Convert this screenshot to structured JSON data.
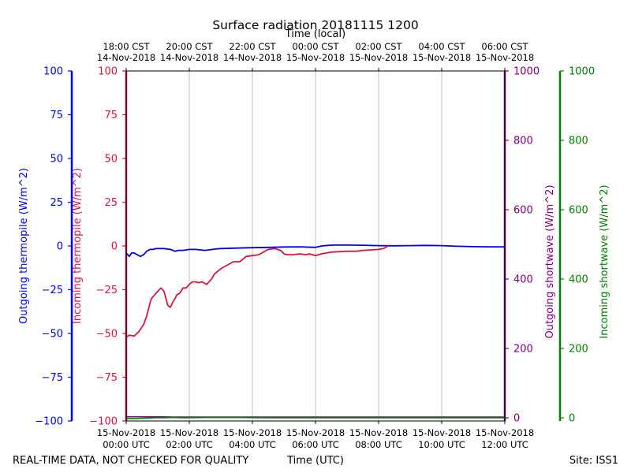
{
  "chart_data": {
    "type": "line",
    "title": "Surface radiation 20181115 1200",
    "top_axis_label": "Time (local)",
    "xlabel": "Time (UTC)",
    "footer_left": "REAL-TIME DATA, NOT CHECKED FOR QUALITY",
    "footer_right": "Site: ISS1",
    "x_range_hours": [
      0,
      12
    ],
    "top_ticks": [
      {
        "h": 0,
        "line1": "18:00 CST",
        "line2": "14-Nov-2018"
      },
      {
        "h": 2,
        "line1": "20:00 CST",
        "line2": "14-Nov-2018"
      },
      {
        "h": 4,
        "line1": "22:00 CST",
        "line2": "14-Nov-2018"
      },
      {
        "h": 6,
        "line1": "00:00 CST",
        "line2": "15-Nov-2018"
      },
      {
        "h": 8,
        "line1": "02:00 CST",
        "line2": "15-Nov-2018"
      },
      {
        "h": 10,
        "line1": "04:00 CST",
        "line2": "15-Nov-2018"
      },
      {
        "h": 12,
        "line1": "06:00 CST",
        "line2": "15-Nov-2018"
      }
    ],
    "bottom_ticks": [
      {
        "h": 0,
        "line1": "15-Nov-2018",
        "line2": "00:00 UTC"
      },
      {
        "h": 2,
        "line1": "15-Nov-2018",
        "line2": "02:00 UTC"
      },
      {
        "h": 4,
        "line1": "15-Nov-2018",
        "line2": "04:00 UTC"
      },
      {
        "h": 6,
        "line1": "15-Nov-2018",
        "line2": "06:00 UTC"
      },
      {
        "h": 8,
        "line1": "15-Nov-2018",
        "line2": "08:00 UTC"
      },
      {
        "h": 10,
        "line1": "15-Nov-2018",
        "line2": "10:00 UTC"
      },
      {
        "h": 12,
        "line1": "15-Nov-2018",
        "line2": "12:00 UTC"
      }
    ],
    "axes": {
      "outgoing_thermopile": {
        "label": "Outgoing thermopile (W/m^2)",
        "color": "#0000ee",
        "range": [
          -100,
          100
        ],
        "ticks": [
          -100,
          -75,
          -50,
          -25,
          0,
          25,
          50,
          75,
          100
        ]
      },
      "incoming_thermopile": {
        "label": "Incoming thermopile (W/m^2)",
        "color": "#dc143c",
        "range": [
          -100,
          100
        ],
        "ticks": [
          -100,
          -75,
          -50,
          -25,
          0,
          25,
          50,
          75,
          100
        ]
      },
      "outgoing_shortwave": {
        "label": "Outgoing shortwave (W/m^2)",
        "color": "#800080",
        "range": [
          0,
          1000
        ],
        "ticks": [
          0,
          200,
          400,
          600,
          800,
          1000
        ]
      },
      "incoming_shortwave": {
        "label": "Incoming shortwave (W/m^2)",
        "color": "#008000",
        "range": [
          0,
          1000
        ],
        "ticks": [
          0,
          200,
          400,
          600,
          800,
          1000
        ]
      }
    },
    "series": [
      {
        "name": "Outgoing thermopile",
        "axis": "outgoing_thermopile",
        "x": [
          0,
          0.05,
          0.1,
          0.17,
          0.25,
          0.35,
          0.45,
          0.55,
          0.65,
          0.75,
          0.85,
          0.95,
          1.05,
          1.2,
          1.4,
          1.55,
          1.65,
          1.8,
          2.0,
          2.2,
          2.5,
          2.8,
          3.0,
          3.5,
          4.0,
          4.5,
          5.0,
          5.5,
          6.0,
          6.2,
          6.4,
          6.6,
          7.0,
          7.5,
          8.0,
          8.5,
          9.0,
          9.5,
          10.0,
          10.5,
          11.0,
          11.5,
          12.0
        ],
        "y": [
          -4,
          -5,
          -6,
          -4,
          -4,
          -5,
          -6,
          -5,
          -3,
          -2,
          -2,
          -1.5,
          -1.5,
          -1.5,
          -2,
          -3,
          -2.5,
          -2.5,
          -2,
          -2,
          -2.5,
          -1.8,
          -1.5,
          -1.2,
          -1,
          -0.8,
          -0.6,
          -0.5,
          -0.8,
          0,
          0.3,
          0.5,
          0.5,
          0.4,
          0.2,
          0.1,
          0.2,
          0.3,
          0.2,
          -0.2,
          -0.4,
          -0.5,
          -0.5
        ]
      },
      {
        "name": "Incoming thermopile",
        "axis": "incoming_thermopile",
        "x": [
          0,
          0.1,
          0.25,
          0.4,
          0.55,
          0.65,
          0.75,
          0.8,
          0.9,
          1.0,
          1.1,
          1.2,
          1.32,
          1.4,
          1.48,
          1.55,
          1.6,
          1.7,
          1.8,
          1.9,
          2.0,
          2.1,
          2.2,
          2.3,
          2.4,
          2.55,
          2.7,
          2.8,
          3.0,
          3.2,
          3.4,
          3.6,
          3.8,
          4.0,
          4.2,
          4.5,
          4.7,
          4.9,
          5.0,
          5.1,
          5.2,
          5.3,
          5.5,
          5.7,
          5.8,
          5.9,
          6.0,
          6.2,
          6.5,
          7.0,
          7.3,
          7.5,
          7.8,
          8.0,
          8.15,
          8.3
        ],
        "y": [
          -52,
          -51,
          -51.5,
          -49,
          -45,
          -40,
          -33,
          -30,
          -28,
          -26,
          -24,
          -26,
          -34,
          -35,
          -32,
          -30,
          -28,
          -27,
          -24,
          -24,
          -22,
          -20.5,
          -20.5,
          -21,
          -20.5,
          -22,
          -19,
          -16,
          -13,
          -11,
          -9,
          -9,
          -6,
          -5.5,
          -5,
          -2,
          -1.5,
          -2.5,
          -4.5,
          -5,
          -5,
          -5,
          -4.5,
          -5,
          -4.5,
          -5,
          -5.5,
          -4.5,
          -3.5,
          -3,
          -3,
          -2.5,
          -2.2,
          -2,
          -1.5,
          0
        ]
      },
      {
        "name": "Outgoing shortwave",
        "axis": "outgoing_shortwave",
        "x": [
          0,
          0.5,
          1.0,
          1.5,
          2.0,
          3.0,
          4.0,
          5.0,
          6.0,
          7.0,
          8.0,
          9.0,
          10.0,
          11.0,
          12.0
        ],
        "y": [
          3,
          3,
          3,
          2,
          2,
          2,
          2,
          2,
          2,
          2,
          2,
          2,
          2,
          2,
          2
        ]
      },
      {
        "name": "Incoming shortwave",
        "axis": "incoming_shortwave",
        "x": [
          0,
          0.3,
          0.6,
          0.9,
          1.2,
          1.5,
          1.8,
          2.5,
          3.5,
          4.5,
          5.5,
          6.5,
          7.5,
          8.5,
          9.5,
          10.5,
          11.5,
          12.0
        ],
        "y": [
          -2,
          -2,
          -1,
          0,
          0,
          1,
          0,
          1,
          1,
          0,
          0,
          0,
          0,
          0,
          0,
          0,
          0,
          0
        ]
      }
    ]
  }
}
